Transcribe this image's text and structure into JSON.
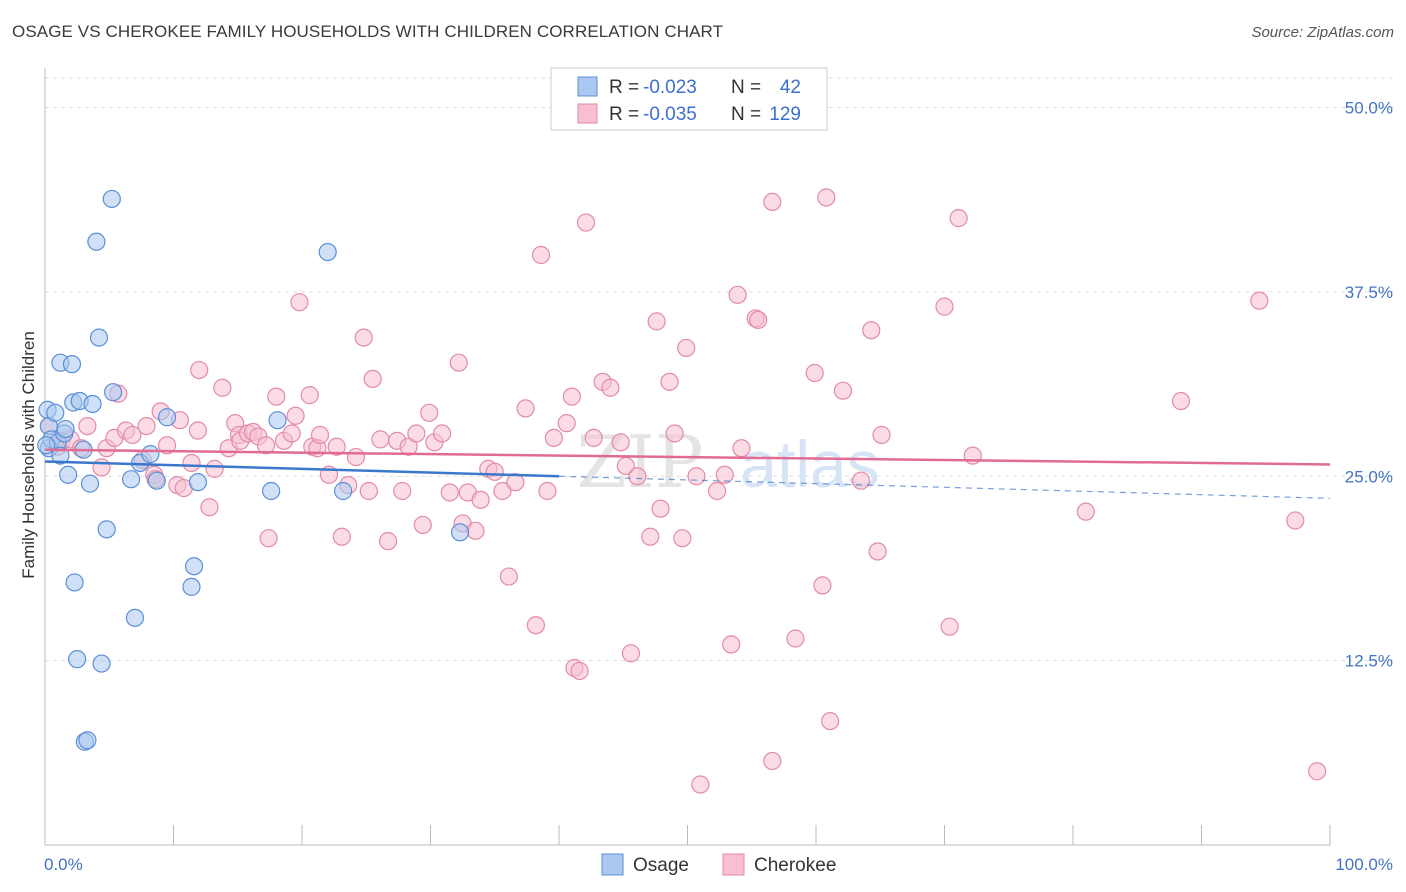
{
  "title": "OSAGE VS CHEROKEE FAMILY HOUSEHOLDS WITH CHILDREN CORRELATION CHART",
  "source": "Source: ZipAtlas.com",
  "watermark": {
    "zip": "ZIP",
    "atlas": "atlas"
  },
  "colors": {
    "osage_fill": "#aac8f0",
    "osage_stroke": "#5b8fd6",
    "osage_line": "#3a78cc",
    "cherokee_fill": "#f7bfd0",
    "cherokee_stroke": "#e38aa8",
    "cherokee_line": "#e06c93",
    "tick_text": "#4472c4",
    "grid": "#dddddd"
  },
  "legend": {
    "rows": [
      {
        "series": "Osage",
        "r_label": "R =",
        "r_value": "-0.023",
        "n_label": "N =",
        "n_value": "42"
      },
      {
        "series": "Cherokee",
        "r_label": "R =",
        "r_value": "-0.035",
        "n_label": "N =",
        "n_value": "129"
      }
    ]
  },
  "chart_data": {
    "type": "scatter",
    "title": "OSAGE VS CHEROKEE FAMILY HOUSEHOLDS WITH CHILDREN CORRELATION CHART",
    "xlabel": "",
    "ylabel": "Family Households with Children",
    "xlim": [
      0,
      100
    ],
    "ylim": [
      0,
      52
    ],
    "x_tick_labels": [
      "0.0%",
      "100.0%"
    ],
    "y_ticks": [
      12.5,
      25.0,
      37.5,
      50.0
    ],
    "y_tick_labels": [
      "12.5%",
      "25.0%",
      "37.5%",
      "50.0%"
    ],
    "grid": true,
    "legend_position": "top-center",
    "series": [
      {
        "name": "Osage",
        "r": -0.023,
        "n": 42,
        "trend": {
          "x": [
            0,
            40
          ],
          "y": [
            26.0,
            25.0
          ],
          "extended_to": [
            100,
            23.5
          ]
        },
        "points": [
          [
            0.2,
            29.5
          ],
          [
            0.3,
            28.4
          ],
          [
            0.3,
            26.9
          ],
          [
            0.5,
            27.5
          ],
          [
            0.8,
            29.3
          ],
          [
            1.0,
            27.3
          ],
          [
            1.2,
            26.4
          ],
          [
            1.2,
            32.7
          ],
          [
            1.5,
            27.9
          ],
          [
            1.6,
            28.2
          ],
          [
            1.8,
            25.1
          ],
          [
            2.1,
            32.6
          ],
          [
            2.2,
            30.0
          ],
          [
            2.3,
            17.8
          ],
          [
            2.5,
            12.6
          ],
          [
            2.7,
            30.1
          ],
          [
            3.0,
            26.8
          ],
          [
            3.1,
            7.0
          ],
          [
            3.3,
            7.1
          ],
          [
            3.5,
            24.5
          ],
          [
            3.7,
            29.9
          ],
          [
            4.2,
            34.4
          ],
          [
            4.0,
            40.9
          ],
          [
            4.4,
            12.3
          ],
          [
            4.8,
            21.4
          ],
          [
            5.2,
            43.8
          ],
          [
            5.3,
            30.7
          ],
          [
            6.7,
            24.8
          ],
          [
            7.0,
            15.4
          ],
          [
            7.4,
            25.9
          ],
          [
            8.2,
            26.5
          ],
          [
            8.7,
            24.7
          ],
          [
            9.5,
            29.0
          ],
          [
            11.4,
            17.5
          ],
          [
            11.6,
            18.9
          ],
          [
            11.9,
            24.6
          ],
          [
            17.6,
            24.0
          ],
          [
            18.1,
            28.8
          ],
          [
            22.0,
            40.2
          ],
          [
            23.2,
            24.0
          ],
          [
            32.3,
            21.2
          ],
          [
            0.1,
            27.1
          ]
        ]
      },
      {
        "name": "Cherokee",
        "r": -0.035,
        "n": 129,
        "trend": {
          "x": [
            0,
            100
          ],
          "y": [
            26.8,
            25.8
          ]
        },
        "points": [
          [
            0.3,
            28.4
          ],
          [
            1.0,
            27.0
          ],
          [
            1.3,
            27.4
          ],
          [
            2.0,
            27.5
          ],
          [
            2.8,
            26.9
          ],
          [
            3.3,
            28.4
          ],
          [
            4.4,
            25.6
          ],
          [
            4.8,
            26.9
          ],
          [
            5.4,
            27.6
          ],
          [
            5.7,
            30.6
          ],
          [
            6.3,
            28.1
          ],
          [
            6.8,
            27.8
          ],
          [
            7.6,
            26.1
          ],
          [
            7.9,
            28.4
          ],
          [
            8.5,
            25.1
          ],
          [
            8.6,
            24.8
          ],
          [
            9.0,
            29.4
          ],
          [
            9.5,
            27.1
          ],
          [
            10.3,
            24.4
          ],
          [
            10.5,
            28.8
          ],
          [
            10.8,
            24.2
          ],
          [
            11.4,
            25.9
          ],
          [
            11.9,
            28.1
          ],
          [
            12.0,
            32.2
          ],
          [
            12.8,
            22.9
          ],
          [
            13.2,
            25.5
          ],
          [
            13.8,
            31.0
          ],
          [
            14.3,
            26.9
          ],
          [
            14.8,
            28.6
          ],
          [
            15.1,
            27.8
          ],
          [
            15.2,
            27.4
          ],
          [
            15.8,
            27.9
          ],
          [
            16.2,
            28.0
          ],
          [
            16.6,
            27.7
          ],
          [
            17.2,
            27.1
          ],
          [
            17.4,
            20.8
          ],
          [
            18.0,
            30.4
          ],
          [
            18.6,
            27.4
          ],
          [
            19.2,
            27.9
          ],
          [
            19.5,
            29.1
          ],
          [
            19.8,
            36.8
          ],
          [
            20.6,
            30.5
          ],
          [
            20.8,
            27.0
          ],
          [
            21.2,
            26.9
          ],
          [
            21.4,
            27.8
          ],
          [
            22.1,
            25.1
          ],
          [
            22.7,
            27.0
          ],
          [
            23.1,
            20.9
          ],
          [
            23.6,
            24.4
          ],
          [
            24.2,
            26.3
          ],
          [
            24.8,
            34.4
          ],
          [
            25.2,
            24.0
          ],
          [
            25.5,
            31.6
          ],
          [
            26.1,
            27.5
          ],
          [
            26.7,
            20.6
          ],
          [
            27.4,
            27.4
          ],
          [
            27.8,
            24.0
          ],
          [
            28.3,
            27.0
          ],
          [
            28.9,
            27.9
          ],
          [
            29.4,
            21.7
          ],
          [
            29.9,
            29.3
          ],
          [
            30.3,
            27.3
          ],
          [
            30.9,
            27.9
          ],
          [
            31.5,
            23.9
          ],
          [
            32.2,
            32.7
          ],
          [
            32.5,
            21.8
          ],
          [
            32.9,
            23.9
          ],
          [
            33.5,
            21.3
          ],
          [
            33.9,
            23.4
          ],
          [
            34.5,
            25.5
          ],
          [
            35.0,
            25.3
          ],
          [
            35.6,
            24.0
          ],
          [
            36.1,
            18.2
          ],
          [
            36.6,
            24.6
          ],
          [
            37.4,
            29.6
          ],
          [
            38.2,
            14.9
          ],
          [
            38.6,
            40.0
          ],
          [
            39.1,
            24.0
          ],
          [
            39.6,
            27.6
          ],
          [
            40.6,
            28.6
          ],
          [
            41.0,
            30.4
          ],
          [
            41.2,
            12.0
          ],
          [
            41.6,
            11.8
          ],
          [
            42.1,
            42.2
          ],
          [
            42.7,
            27.6
          ],
          [
            43.4,
            31.4
          ],
          [
            44.0,
            31.0
          ],
          [
            44.8,
            27.3
          ],
          [
            45.2,
            25.7
          ],
          [
            45.6,
            13.0
          ],
          [
            46.1,
            25.0
          ],
          [
            47.1,
            20.9
          ],
          [
            47.6,
            35.5
          ],
          [
            47.9,
            22.8
          ],
          [
            48.6,
            31.4
          ],
          [
            49.0,
            27.9
          ],
          [
            49.6,
            20.8
          ],
          [
            49.9,
            33.7
          ],
          [
            50.7,
            25.0
          ],
          [
            51.0,
            4.1
          ],
          [
            52.3,
            24.0
          ],
          [
            52.9,
            25.1
          ],
          [
            53.4,
            13.6
          ],
          [
            53.9,
            37.3
          ],
          [
            54.2,
            26.9
          ],
          [
            55.3,
            35.7
          ],
          [
            55.5,
            35.6
          ],
          [
            56.6,
            43.6
          ],
          [
            56.6,
            5.7
          ],
          [
            58.4,
            14.0
          ],
          [
            59.9,
            32.0
          ],
          [
            60.5,
            17.6
          ],
          [
            60.8,
            43.9
          ],
          [
            61.1,
            8.4
          ],
          [
            62.1,
            30.8
          ],
          [
            63.5,
            24.7
          ],
          [
            64.3,
            34.9
          ],
          [
            64.8,
            19.9
          ],
          [
            65.1,
            27.8
          ],
          [
            70.0,
            36.5
          ],
          [
            70.4,
            14.8
          ],
          [
            71.1,
            42.5
          ],
          [
            72.2,
            26.4
          ],
          [
            81.0,
            22.6
          ],
          [
            88.4,
            30.1
          ],
          [
            94.5,
            36.9
          ],
          [
            97.3,
            22.0
          ],
          [
            99.0,
            5.0
          ]
        ]
      }
    ]
  },
  "bottom_legend": [
    {
      "label": "Osage"
    },
    {
      "label": "Cherokee"
    }
  ]
}
